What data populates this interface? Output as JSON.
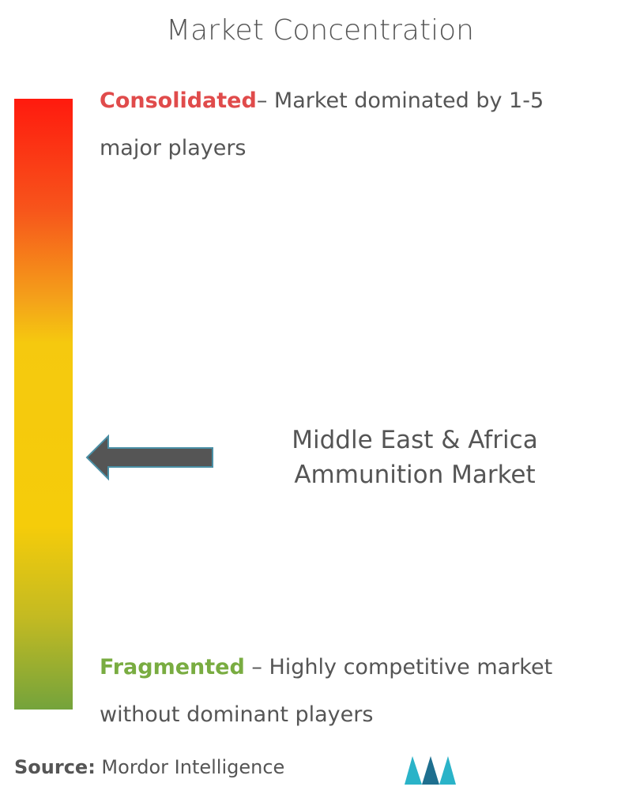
{
  "title": "Market Concentration",
  "consolidated": {
    "label": "Consolidated",
    "text": "– Market dominated by 1-5 major players"
  },
  "fragmented": {
    "label": "Fragmented",
    "text": " – Highly competitive market without dominant players"
  },
  "market": "Middle East & Africa Ammunition Market",
  "source": {
    "label": "Source:",
    "text": " Mordor Intelligence"
  }
}
